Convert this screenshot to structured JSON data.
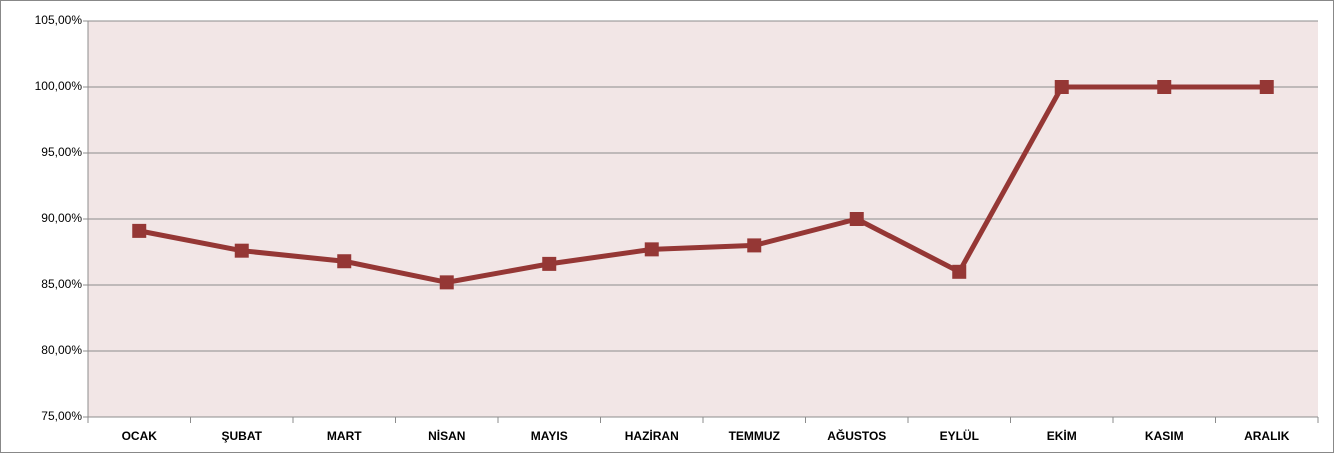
{
  "chart_data": {
    "type": "line",
    "categories": [
      "OCAK",
      "ŞUBAT",
      "MART",
      "NİSAN",
      "MAYIS",
      "HAZİRAN",
      "TEMMUZ",
      "AĞUSTOS",
      "EYLÜL",
      "EKİM",
      "KASIM",
      "ARALIK"
    ],
    "series": [
      {
        "color": "#953735",
        "values": [
          89.1,
          87.6,
          86.8,
          85.2,
          86.6,
          87.7,
          88.0,
          90.0,
          86.0,
          100,
          100,
          100
        ]
      }
    ],
    "ylim": [
      75,
      105
    ],
    "yticks": [
      {
        "value": 75,
        "label": "75,00%"
      },
      {
        "value": 80,
        "label": "80,00%"
      },
      {
        "value": 85,
        "label": "85,00%"
      },
      {
        "value": 90,
        "label": "90,00%"
      },
      {
        "value": 95,
        "label": "95,00%"
      },
      {
        "value": 100,
        "label": "100,00%"
      },
      {
        "value": 105,
        "label": "105,00%"
      }
    ],
    "grid": true
  }
}
